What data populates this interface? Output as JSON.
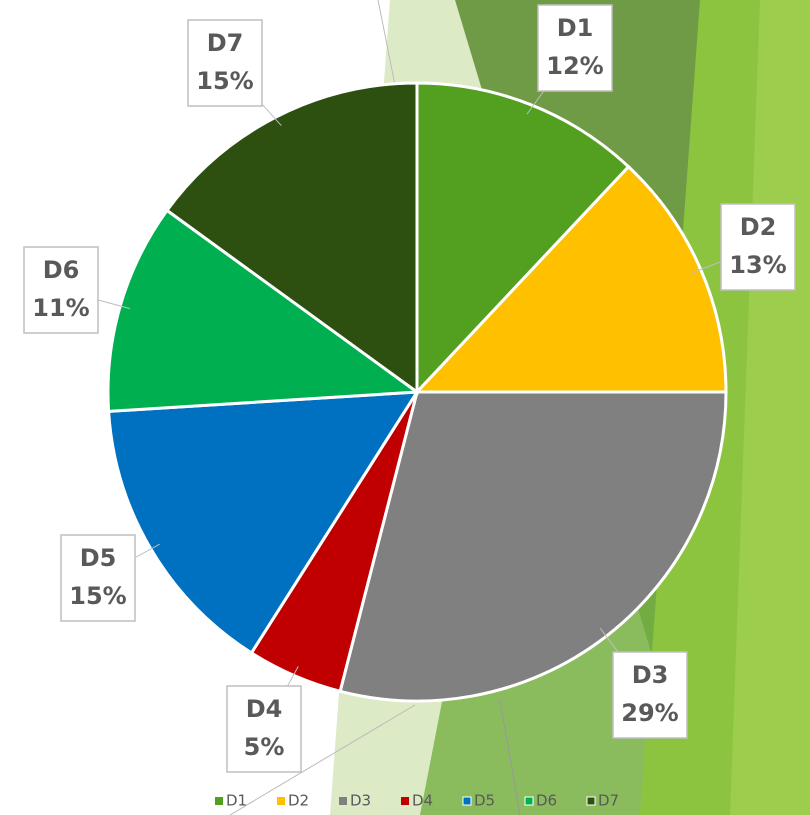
{
  "chart_data": {
    "type": "pie",
    "categories": [
      "D1",
      "D2",
      "D3",
      "D4",
      "D5",
      "D6",
      "D7"
    ],
    "values": [
      12,
      13,
      29,
      5,
      15,
      11,
      15
    ],
    "value_labels": [
      "12%",
      "13%",
      "29%",
      "5%",
      "15%",
      "11%",
      "15%"
    ],
    "colors": [
      "#53a020",
      "#ffc000",
      "#808080",
      "#c00000",
      "#0070c0",
      "#00b050",
      "#2d5010"
    ],
    "legend": "bottom"
  }
}
